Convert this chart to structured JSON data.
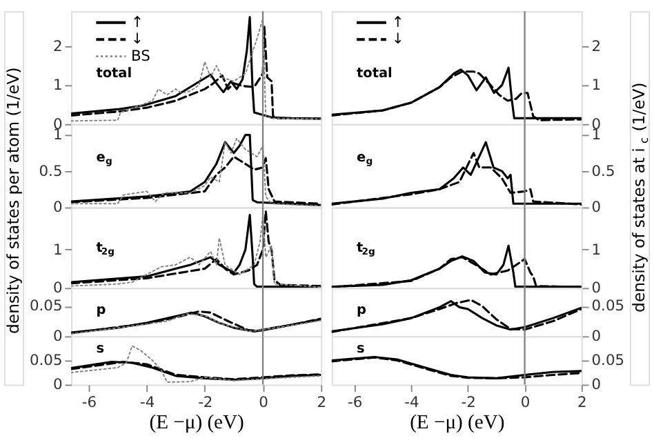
{
  "chart_data": [
    {
      "type": "line",
      "xlim": [
        -6.6,
        2
      ],
      "xticks": [
        -6,
        -4,
        -2,
        0,
        2
      ],
      "ylim": [
        0,
        2.9
      ],
      "yticks": [
        0,
        1,
        2
      ],
      "tick_labels": "y",
      "legend": "top left",
      "annotations": [
        "total"
      ],
      "ref_lines": [
        {
          "axis": "x",
          "value": 0,
          "color": "#808080"
        }
      ],
      "series": [
        {
          "name": "↑",
          "color": "#000000",
          "line_style": "solid",
          "x": [
            -6.6,
            -5,
            -4.1,
            -3,
            -2.5,
            -1.8,
            -1.6,
            -1.36,
            -1.1,
            -0.9,
            -0.7,
            -0.55,
            -0.45,
            -0.36,
            -0.3,
            0.3,
            1,
            2
          ],
          "values": [
            0.27,
            0.38,
            0.48,
            0.72,
            0.95,
            1.27,
            1.05,
            0.82,
            1.1,
            0.9,
            1.15,
            1.9,
            2.75,
            1.0,
            0.3,
            0.17,
            0.15,
            0.14
          ]
        },
        {
          "name": "↓",
          "color": "#000000",
          "line_style": "dashed",
          "x": [
            -6.6,
            -5,
            -4,
            -3,
            -2,
            -1.7,
            -1.4,
            -1.2,
            -1.0,
            -0.7,
            -0.3,
            0,
            0.05,
            0.15,
            0.3,
            0.35,
            0.5,
            2
          ],
          "values": [
            0.22,
            0.32,
            0.42,
            0.6,
            0.9,
            1.05,
            1.25,
            0.9,
            1.05,
            0.98,
            0.95,
            1.3,
            2.5,
            1.2,
            1.1,
            0.2,
            0.15,
            0.14
          ]
        },
        {
          "name": "BS",
          "color": "#808080",
          "line_style": "dotted",
          "x": [
            -6.6,
            -5,
            -4.9,
            -4.7,
            -3.8,
            -3.6,
            -3.3,
            -3,
            -2.8,
            -2.5,
            -2.2,
            -2.0,
            -1.8,
            -1.6,
            -1.4,
            -1.0,
            -0.6,
            -0.2,
            0,
            0.1,
            0.3,
            2
          ],
          "values": [
            0.08,
            0.1,
            0.3,
            0.35,
            0.6,
            0.9,
            0.75,
            0.9,
            0.8,
            0.85,
            1.0,
            1.6,
            1.2,
            1.5,
            1.2,
            1.1,
            1.3,
            2.2,
            2.7,
            0.2,
            0.15,
            0.13
          ]
        }
      ]
    },
    {
      "type": "line",
      "xlim": [
        -6.6,
        2
      ],
      "xticks": [
        -6,
        -4,
        -2,
        0,
        2
      ],
      "ylim": [
        0,
        1.15
      ],
      "yticks": [
        0,
        0.5,
        1
      ],
      "tick_labels": "y",
      "annotations": [
        "e$_{g}$"
      ],
      "ref_lines": [
        {
          "axis": "x",
          "value": 0,
          "color": "#808080"
        }
      ],
      "series": [
        {
          "color": "#000000",
          "line_style": "solid",
          "x": [
            -6.6,
            -4,
            -2.5,
            -2,
            -1.6,
            -1.3,
            -1.0,
            -0.8,
            -0.6,
            -0.45,
            -0.35,
            -0.2,
            2
          ],
          "values": [
            0.08,
            0.15,
            0.22,
            0.35,
            0.6,
            0.9,
            0.75,
            0.85,
            1.0,
            1.0,
            0.1,
            0.07,
            0.03
          ]
        },
        {
          "color": "#000000",
          "line_style": "dashed",
          "x": [
            -6.6,
            -4,
            -2,
            -1.6,
            -1.3,
            -1.0,
            -0.6,
            -0.3,
            0,
            0.1,
            0.2,
            0.4,
            2
          ],
          "values": [
            0.07,
            0.13,
            0.22,
            0.45,
            0.55,
            0.7,
            0.6,
            0.52,
            0.55,
            0.68,
            0.25,
            0.08,
            0.05
          ]
        },
        {
          "color": "#808080",
          "line_style": "dotted",
          "x": [
            -6.6,
            -5,
            -4.8,
            -4,
            -3.7,
            -3.4,
            -2.5,
            -2,
            -1.8,
            -1.5,
            -1.3,
            -1.1,
            -0.9,
            -0.6,
            -0.2,
            0,
            0.1,
            0.3,
            2
          ],
          "values": [
            0.05,
            0.05,
            0.17,
            0.22,
            0.08,
            0.2,
            0.2,
            0.3,
            0.42,
            0.35,
            0.9,
            0.75,
            0.95,
            0.8,
            0.7,
            0.85,
            0.15,
            0.05,
            0.02
          ]
        }
      ]
    },
    {
      "type": "line",
      "xlim": [
        -6.6,
        2
      ],
      "xticks": [
        -6,
        -4,
        -2,
        0,
        2
      ],
      "ylim": [
        0,
        2.1
      ],
      "yticks": [
        0,
        1
      ],
      "tick_labels": "y",
      "ylabel": "density of states per atom (1/eV)",
      "annotations": [
        "t$_{2g}$"
      ],
      "ref_lines": [
        {
          "axis": "x",
          "value": 0,
          "color": "#808080"
        }
      ],
      "series": [
        {
          "color": "#000000",
          "line_style": "solid",
          "x": [
            -6.6,
            -4,
            -2.5,
            -1.8,
            -1.5,
            -1.0,
            -0.8,
            -0.6,
            -0.45,
            -0.35,
            -0.3,
            -0.2,
            2
          ],
          "values": [
            0.15,
            0.3,
            0.6,
            0.8,
            0.6,
            0.4,
            0.6,
            1.0,
            1.9,
            0.8,
            0.1,
            0.03,
            0.03
          ]
        },
        {
          "color": "#000000",
          "line_style": "dashed",
          "x": [
            -6.6,
            -4,
            -2,
            -1.6,
            -1.3,
            -1.0,
            -0.5,
            -0.2,
            0,
            0.1,
            0.2,
            0.3,
            0.4,
            0.6,
            2
          ],
          "values": [
            0.12,
            0.25,
            0.5,
            0.75,
            0.5,
            0.35,
            0.45,
            0.6,
            1.0,
            2.0,
            1.2,
            1.0,
            0.2,
            0.08,
            0.05
          ]
        },
        {
          "color": "#808080",
          "line_style": "dotted",
          "x": [
            -6.6,
            -5,
            -4.5,
            -3.5,
            -3,
            -2.5,
            -2.2,
            -1.8,
            -1.6,
            -1.5,
            -1.3,
            -0.8,
            -0.3,
            -0.1,
            0,
            0.1,
            0.3,
            0.4,
            2
          ],
          "values": [
            0.05,
            0.1,
            0.15,
            0.55,
            0.6,
            0.8,
            0.6,
            0.95,
            0.6,
            1.3,
            0.6,
            0.35,
            0.6,
            1.2,
            1.9,
            0.8,
            1.1,
            0.1,
            0.02
          ]
        }
      ]
    },
    {
      "type": "line",
      "xlim": [
        -6.6,
        2
      ],
      "xticks": [
        -6,
        -4,
        -2,
        0,
        2
      ],
      "ylim": [
        0,
        0.08
      ],
      "yticks": [
        0,
        0.05
      ],
      "tick_labels": "y",
      "annotations": [
        "p"
      ],
      "ref_lines": [
        {
          "axis": "x",
          "value": 0,
          "color": "#808080"
        }
      ],
      "series": [
        {
          "color": "#000000",
          "line_style": "solid",
          "x": [
            -6.6,
            -5,
            -4,
            -3,
            -2.45,
            -2,
            -1.5,
            -1,
            -0.3,
            0,
            1,
            2
          ],
          "values": [
            0.006,
            0.014,
            0.022,
            0.033,
            0.039,
            0.033,
            0.022,
            0.014,
            0.008,
            0.01,
            0.019,
            0.028
          ]
        },
        {
          "color": "#000000",
          "line_style": "dashed",
          "x": [
            -6.6,
            -4,
            -3,
            -2.2,
            -1.8,
            -1.2,
            -0.5,
            -0.2,
            1,
            2
          ],
          "values": [
            0.005,
            0.021,
            0.031,
            0.041,
            0.039,
            0.025,
            0.01,
            0.009,
            0.019,
            0.029
          ]
        },
        {
          "color": "#808080",
          "line_style": "dotted",
          "x": [
            -6.6,
            -4,
            -3.3,
            -2.6,
            -2,
            -1.4,
            -0.4,
            1,
            2
          ],
          "values": [
            0.004,
            0.02,
            0.025,
            0.037,
            0.034,
            0.02,
            0.008,
            0.018,
            0.026
          ]
        }
      ]
    },
    {
      "type": "line",
      "xlim": [
        -6.6,
        2
      ],
      "xticks": [
        -6,
        -4,
        -2,
        0,
        2
      ],
      "ylim": [
        0,
        0.1
      ],
      "yticks": [
        0,
        0.05
      ],
      "xlabel": "(E −μ) (eV)",
      "annotations": [
        "s"
      ],
      "ref_lines": [
        {
          "axis": "x",
          "value": 0,
          "color": "#808080"
        }
      ],
      "series": [
        {
          "color": "#000000",
          "line_style": "solid",
          "x": [
            -6.6,
            -5.2,
            -4.5,
            -3.8,
            -3,
            -2,
            -1,
            0,
            1,
            2
          ],
          "values": [
            0.034,
            0.047,
            0.045,
            0.035,
            0.018,
            0.013,
            0.01,
            0.013,
            0.018,
            0.02
          ]
        },
        {
          "color": "#000000",
          "line_style": "dashed",
          "x": [
            -6.6,
            -4.8,
            -4,
            -3,
            -2,
            -1,
            0,
            1,
            2
          ],
          "values": [
            0.032,
            0.047,
            0.042,
            0.02,
            0.015,
            0.011,
            0.015,
            0.019,
            0.021
          ]
        },
        {
          "color": "#808080",
          "line_style": "dotted",
          "x": [
            -6.6,
            -5,
            -4.7,
            -4.5,
            -4.2,
            -3.8,
            -3.5,
            -3.3,
            -2.5,
            -2,
            -1,
            0,
            2
          ],
          "values": [
            0.025,
            0.035,
            0.045,
            0.08,
            0.07,
            0.05,
            0.03,
            0.005,
            0.006,
            0.015,
            0.008,
            0.012,
            0.018
          ]
        }
      ]
    },
    {
      "type": "line",
      "xlim": [
        -6.8,
        2
      ],
      "xticks": [
        -6,
        -4,
        -2,
        0,
        2
      ],
      "y2lim": [
        0,
        2.9
      ],
      "y2ticks": [
        0,
        1,
        2
      ],
      "tick_labels": "y",
      "legend": "top left",
      "annotations": [
        "total"
      ],
      "ref_lines": [
        {
          "axis": "x",
          "value": 0,
          "color": "#808080"
        }
      ],
      "series": [
        {
          "name": "↑",
          "color": "#000000",
          "line_style": "solid",
          "axis": "y2",
          "x": [
            -6.8,
            -5,
            -4,
            -3,
            -2.5,
            -2.25,
            -2,
            -1.7,
            -1.37,
            -1.08,
            -0.8,
            -0.57,
            -0.45,
            -0.37,
            2
          ],
          "values": [
            0.24,
            0.35,
            0.55,
            0.95,
            1.3,
            1.4,
            1.25,
            0.87,
            1.2,
            0.8,
            1.0,
            1.45,
            0.6,
            0.15,
            0.15
          ]
        },
        {
          "name": "↓",
          "color": "#000000",
          "line_style": "dashed",
          "axis": "y2",
          "x": [
            -6.8,
            -5,
            -4,
            -3,
            -2.6,
            -2.2,
            -1.8,
            -1.6,
            -1.2,
            -0.9,
            -0.6,
            -0.3,
            -0.1,
            0.1,
            0.3,
            0.5,
            2
          ],
          "values": [
            0.22,
            0.35,
            0.55,
            0.95,
            1.2,
            1.35,
            1.35,
            1.3,
            1.0,
            0.75,
            0.6,
            0.65,
            0.8,
            0.8,
            0.2,
            0.1,
            0.12
          ]
        }
      ]
    },
    {
      "type": "line",
      "xlim": [
        -6.8,
        2
      ],
      "xticks": [
        -6,
        -4,
        -2,
        0,
        2
      ],
      "y2lim": [
        0,
        1.15
      ],
      "y2ticks": [
        0,
        0.5,
        1
      ],
      "tick_labels": "y",
      "annotations": [
        "e$_{g}$"
      ],
      "ref_lines": [
        {
          "axis": "x",
          "value": 0,
          "color": "#808080"
        }
      ],
      "series": [
        {
          "color": "#000000",
          "line_style": "solid",
          "axis": "y2",
          "x": [
            -6.8,
            -5,
            -4,
            -3,
            -2.5,
            -2.17,
            -1.9,
            -1.37,
            -1.1,
            -0.8,
            -0.6,
            -0.5,
            -0.4,
            2
          ],
          "values": [
            0.05,
            0.12,
            0.2,
            0.25,
            0.4,
            0.55,
            0.45,
            0.9,
            0.55,
            0.5,
            0.4,
            0.45,
            0.05,
            0.05
          ]
        },
        {
          "color": "#000000",
          "line_style": "dashed",
          "axis": "y2",
          "x": [
            -6.8,
            -4,
            -3,
            -2.3,
            -1.8,
            -1.6,
            -1.2,
            -0.8,
            -0.5,
            0,
            0.2,
            0.3,
            2
          ],
          "values": [
            0.04,
            0.18,
            0.25,
            0.35,
            0.75,
            0.55,
            0.55,
            0.4,
            0.2,
            0.22,
            0.25,
            0.08,
            0.04
          ]
        }
      ]
    },
    {
      "type": "line",
      "xlim": [
        -6.8,
        2
      ],
      "xticks": [
        -6,
        -4,
        -2,
        0,
        2
      ],
      "y2lim": [
        0,
        2.1
      ],
      "y2ticks": [
        0,
        1
      ],
      "tick_labels": "y",
      "y2label": "density of states at i$_{c}$ (1/eV)",
      "annotations": [
        "t$_{2g}$"
      ],
      "ref_lines": [
        {
          "axis": "x",
          "value": 0,
          "color": "#808080"
        }
      ],
      "series": [
        {
          "color": "#000000",
          "line_style": "solid",
          "axis": "y2",
          "x": [
            -6.8,
            -5,
            -4,
            -3,
            -2.6,
            -2.2,
            -1.8,
            -1.4,
            -1.0,
            -0.75,
            -0.57,
            -0.4,
            -0.33,
            2
          ],
          "values": [
            0.03,
            0.08,
            0.2,
            0.5,
            0.7,
            0.82,
            0.7,
            0.4,
            0.35,
            0.6,
            1.1,
            0.4,
            0.03,
            0.03
          ]
        },
        {
          "color": "#000000",
          "line_style": "dashed",
          "axis": "y2",
          "x": [
            -6.8,
            -4,
            -3,
            -2.6,
            -2.2,
            -1.6,
            -1.2,
            -0.6,
            -0.2,
            0,
            0.2,
            0.3,
            0.4,
            2
          ],
          "values": [
            0.02,
            0.18,
            0.5,
            0.75,
            0.8,
            0.55,
            0.35,
            0.45,
            0.65,
            0.75,
            0.4,
            0.3,
            0.05,
            0.02
          ]
        }
      ]
    },
    {
      "type": "line",
      "xlim": [
        -6.8,
        2
      ],
      "xticks": [
        -6,
        -4,
        -2,
        0,
        2
      ],
      "y2lim": [
        0,
        0.08
      ],
      "y2ticks": [
        0,
        0.05
      ],
      "tick_labels": "y",
      "annotations": [
        "p"
      ],
      "ref_lines": [
        {
          "axis": "x",
          "value": 0,
          "color": "#808080"
        }
      ],
      "series": [
        {
          "color": "#000000",
          "line_style": "solid",
          "axis": "y2",
          "x": [
            -6.8,
            -5,
            -4,
            -3,
            -2.6,
            -2.3,
            -2,
            -1.5,
            -1,
            -0.5,
            0,
            1,
            2
          ],
          "values": [
            0.008,
            0.02,
            0.03,
            0.048,
            0.058,
            0.048,
            0.045,
            0.03,
            0.018,
            0.011,
            0.015,
            0.03,
            0.047
          ]
        },
        {
          "color": "#000000",
          "line_style": "dashed",
          "axis": "y2",
          "x": [
            -6.8,
            -4,
            -3,
            -2.4,
            -1.9,
            -1.5,
            -1,
            -0.5,
            0,
            1,
            2
          ],
          "values": [
            0.007,
            0.03,
            0.045,
            0.055,
            0.06,
            0.05,
            0.028,
            0.012,
            0.011,
            0.025,
            0.045
          ]
        }
      ]
    },
    {
      "type": "line",
      "xlim": [
        -6.8,
        2
      ],
      "xticks": [
        -6,
        -4,
        -2,
        0,
        2
      ],
      "y2lim": [
        0,
        0.1
      ],
      "y2ticks": [
        0,
        0.05
      ],
      "xlabel": "(E −μ) (eV)",
      "annotations": [
        "s"
      ],
      "ref_lines": [
        {
          "axis": "x",
          "value": 0,
          "color": "#808080"
        }
      ],
      "series": [
        {
          "color": "#000000",
          "line_style": "solid",
          "axis": "y2",
          "x": [
            -6.8,
            -5.3,
            -4.5,
            -3.5,
            -2.6,
            -2,
            -1,
            0,
            1,
            2
          ],
          "values": [
            0.05,
            0.057,
            0.052,
            0.035,
            0.02,
            0.015,
            0.013,
            0.02,
            0.026,
            0.028
          ]
        },
        {
          "color": "#000000",
          "line_style": "dashed",
          "axis": "y2",
          "x": [
            -6.8,
            -5.3,
            -4.5,
            -3.5,
            -2.6,
            -2,
            -1,
            0,
            1,
            2
          ],
          "values": [
            0.048,
            0.056,
            0.05,
            0.033,
            0.018,
            0.014,
            0.013,
            0.015,
            0.02,
            0.024
          ]
        }
      ]
    }
  ]
}
